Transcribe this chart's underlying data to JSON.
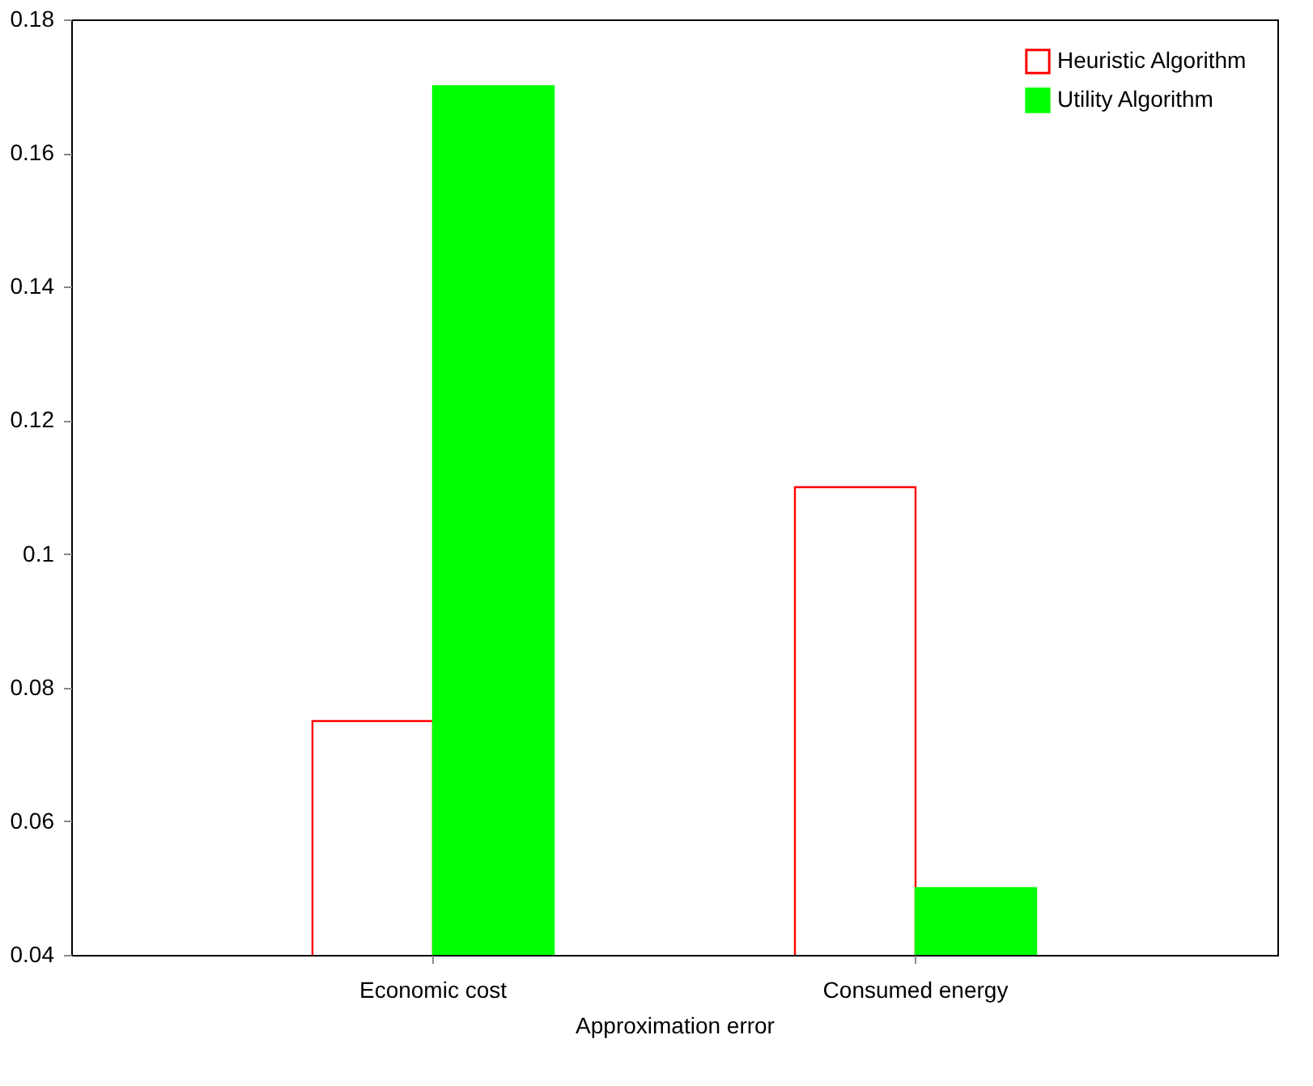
{
  "chart_data": {
    "type": "bar",
    "xlabel": "Approximation error",
    "categories": [
      "Economic cost",
      "Consumed energy"
    ],
    "series": [
      {
        "name": "Heuristic Algorithm",
        "color": "#ff0000",
        "values": [
          0.075,
          0.11
        ]
      },
      {
        "name": "Utility Algorithm",
        "color": "#00ff00",
        "values": [
          0.17,
          0.05
        ]
      }
    ],
    "ylim": [
      0.04,
      0.18
    ],
    "yticks": [
      0.04,
      0.06,
      0.08,
      {
        "value": 0.1,
        "label": "0.1"
      },
      0.12,
      0.14,
      0.16,
      0.18
    ],
    "grid": false,
    "legend": "top right"
  }
}
